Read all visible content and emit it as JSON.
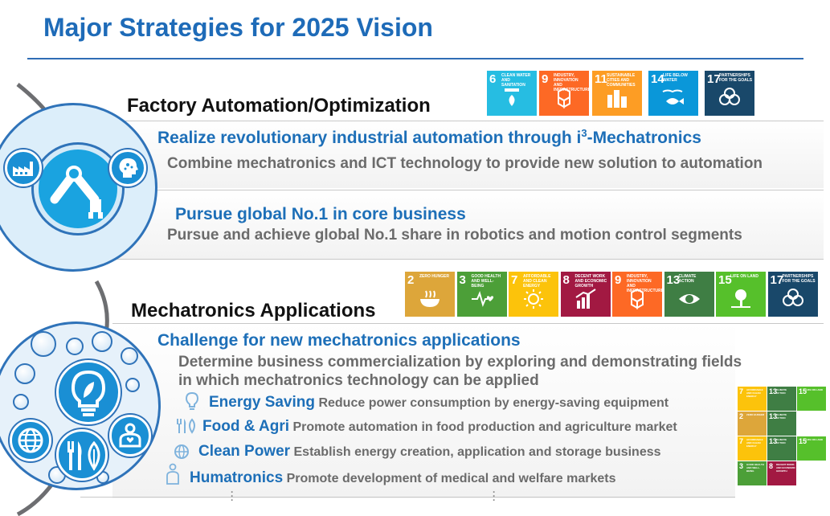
{
  "title": "Major Strategies for 2025 Vision",
  "factory": {
    "heading": "Factory Automation/Optimization",
    "item1_title_a": "Realize revolutionary industrial automation through i",
    "item1_sup": "3",
    "item1_title_b": "-Mechatronics",
    "item1_desc": "Combine mechatronics and ICT technology to provide new solution to automation",
    "item2_title": "Pursue global No.1 in core business",
    "item2_desc": "Pursue and achieve global No.1 share in robotics and motion control segments",
    "sdgs": [
      {
        "num": "6",
        "label": "Clean water and sanitation",
        "color": "#26bde2",
        "icon": "water-drop-icon"
      },
      {
        "num": "9",
        "label": "Industry, innovation and infrastructure",
        "color": "#fd6925",
        "icon": "cubes-icon"
      },
      {
        "num": "11",
        "label": "Sustainable cities and communities",
        "color": "#fd9d24",
        "icon": "city-icon"
      },
      {
        "num": "14",
        "label": "Life below water",
        "color": "#0a97d9",
        "icon": "fish-icon"
      },
      {
        "num": "17",
        "label": "Partnerships for the goals",
        "color": "#19486a",
        "icon": "rings-icon"
      }
    ]
  },
  "mechatronics": {
    "heading": "Mechatronics Applications",
    "challenge_title": "Challenge for new mechatronics applications",
    "challenge_desc1": "Determine business commercialization by exploring and demonstrating fields",
    "challenge_desc2": "in which mechatronics technology can be applied",
    "sdgs": [
      {
        "num": "2",
        "label": "Zero hunger",
        "color": "#dda63a",
        "icon": "bowl-icon"
      },
      {
        "num": "3",
        "label": "Good health and well-being",
        "color": "#4c9f38",
        "icon": "heartbeat-icon"
      },
      {
        "num": "7",
        "label": "Affordable and clean energy",
        "color": "#fcc30b",
        "icon": "sun-icon"
      },
      {
        "num": "8",
        "label": "Decent work and economic growth",
        "color": "#a21942",
        "icon": "growth-chart-icon"
      },
      {
        "num": "9",
        "label": "Industry, innovation and infrastructure",
        "color": "#fd6925",
        "icon": "cubes-icon"
      },
      {
        "num": "13",
        "label": "Climate action",
        "color": "#3f7e44",
        "icon": "eye-globe-icon"
      },
      {
        "num": "15",
        "label": "Life on land",
        "color": "#56c02b",
        "icon": "tree-icon"
      },
      {
        "num": "17",
        "label": "Partnerships for the goals",
        "color": "#19486a",
        "icon": "rings-icon"
      }
    ],
    "fields": [
      {
        "name": "Energy Saving",
        "desc": "Reduce power consumption by energy-saving equipment",
        "icon": "lightbulb-icon"
      },
      {
        "name": "Food & Agri",
        "desc": "Promote automation in food production and agriculture market",
        "icon": "fork-knife-icon"
      },
      {
        "name": "Clean Power",
        "desc": "Establish energy creation, application and storage business",
        "icon": "globe-icon"
      },
      {
        "name": "Humatronics",
        "desc": "Promote development of medical and welfare markets",
        "icon": "person-icon"
      }
    ],
    "field_sdgs": [
      [
        {
          "num": "7",
          "color": "#fcc30b",
          "label": "Affordable and clean energy"
        },
        {
          "num": "13",
          "color": "#3f7e44",
          "label": "Climate action"
        },
        {
          "num": "15",
          "color": "#56c02b",
          "label": "Life on land"
        }
      ],
      [
        {
          "num": "2",
          "color": "#dda63a",
          "label": "Zero hunger"
        },
        {
          "num": "13",
          "color": "#3f7e44",
          "label": "Climate action"
        }
      ],
      [
        {
          "num": "7",
          "color": "#fcc30b",
          "label": "Affordable and clean energy"
        },
        {
          "num": "13",
          "color": "#3f7e44",
          "label": "Climate action"
        },
        {
          "num": "15",
          "color": "#56c02b",
          "label": "Life on land"
        }
      ],
      [
        {
          "num": "3",
          "color": "#4c9f38",
          "label": "Good health and well-being"
        },
        {
          "num": "8",
          "color": "#a21942",
          "label": "Decent work and economic growth"
        }
      ]
    ]
  },
  "colors": {
    "accent": "#1d6fb8",
    "gray_text": "#6b6b6b",
    "circle": "#1aa3e0"
  }
}
